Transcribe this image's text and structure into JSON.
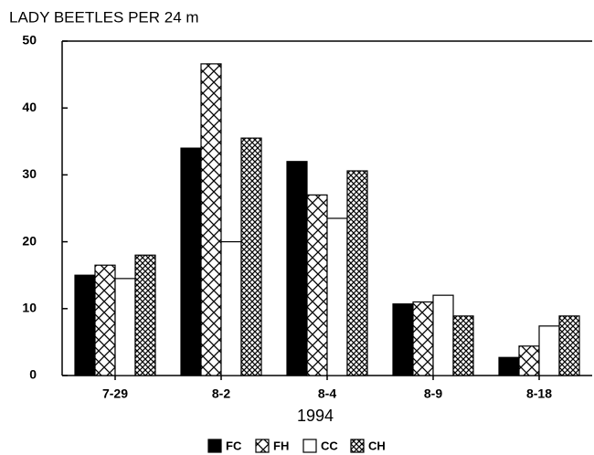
{
  "chart_data": {
    "type": "bar",
    "title": "LADY BEETLES PER 24 m",
    "x_label": "1994",
    "categories": [
      "7-29",
      "8-2",
      "8-4",
      "8-9",
      "8-18"
    ],
    "series": [
      {
        "name": "FC",
        "color": "#000000",
        "pattern": "solid",
        "values": [
          15,
          34,
          32,
          10.7,
          2.7
        ]
      },
      {
        "name": "FH",
        "color": "#000000",
        "pattern": "crosshatch",
        "values": [
          16.5,
          46.6,
          27,
          11,
          4.4
        ]
      },
      {
        "name": "CC",
        "color": "#000000",
        "pattern": "none",
        "values": [
          14.5,
          20,
          23.5,
          12,
          7.4
        ]
      },
      {
        "name": "CH",
        "color": "#000000",
        "pattern": "fine-crosshatch",
        "values": [
          18,
          35.5,
          30.6,
          8.9,
          8.9
        ]
      }
    ],
    "ylim": [
      0,
      50
    ],
    "yticks": [
      0,
      10,
      20,
      30,
      40,
      50
    ],
    "grid": false,
    "legend": "bottom"
  }
}
